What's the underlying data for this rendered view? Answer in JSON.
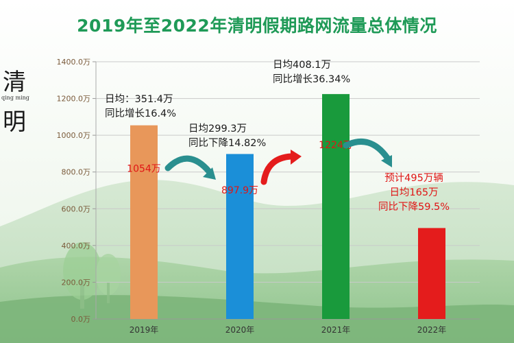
{
  "title": "2019年至2022年清明假期路网流量总体情况",
  "brand": {
    "char_top": "清",
    "char_bottom": "明",
    "subtitle": "qing ming"
  },
  "chart_data": {
    "type": "bar",
    "categories": [
      "2019年",
      "2020年",
      "2021年",
      "2022年"
    ],
    "values": [
      1054,
      897.9,
      1224,
      495
    ],
    "bar_labels": [
      "1054万",
      "897.9万",
      "1224万",
      ""
    ],
    "bar_colors": [
      "#e8975a",
      "#1b8fd8",
      "#199a3c",
      "#e41c1c"
    ],
    "y_ticks": [
      0,
      200,
      400,
      600,
      800,
      1000,
      1200,
      1400
    ],
    "y_tick_labels": [
      "0.0万",
      "200.0万",
      "400.0万",
      "600.0万",
      "800.0万",
      "1000.0万",
      "1200.0万",
      "1400.0万"
    ],
    "ylim": [
      0,
      1400
    ],
    "grid": true,
    "annotations": [
      {
        "lines": [
          "日均：351.4万",
          "同比增长16.4%"
        ],
        "color": "#1a1a1a"
      },
      {
        "lines": [
          "日均299.3万",
          "同比下降14.82%"
        ],
        "color": "#1a1a1a"
      },
      {
        "lines": [
          "日均408.1万",
          "同比增长36.34%"
        ],
        "color": "#1a1a1a"
      },
      {
        "lines": [
          "预计495万辆",
          "日均165万",
          "同比下降59.5%"
        ],
        "color": "#e01515"
      }
    ]
  }
}
